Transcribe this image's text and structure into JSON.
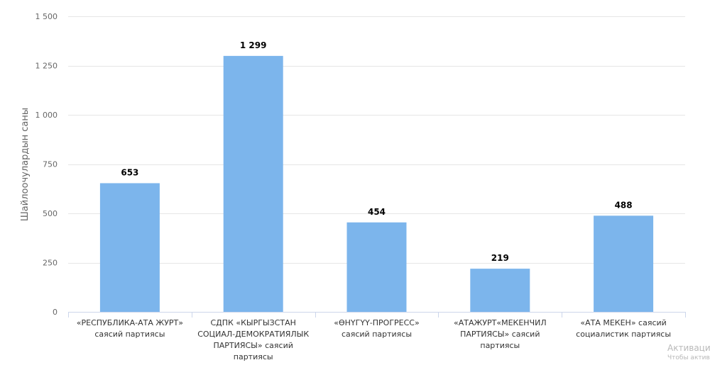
{
  "chart_data": {
    "type": "bar",
    "title": "",
    "xlabel": "",
    "ylabel": "Шайлоочулардын саны",
    "categories": [
      "«РЕСПУБЛИКА-АТА ЖУРТ» саясий партиясы",
      "СДПК «КЫРГЫЗСТАН СОЦИАЛ-ДЕМОКРАТИЯЛЫК ПАРТИЯСЫ» саясий партиясы",
      "«ӨНҮГҮҮ-ПРОГРЕСС» саясий партиясы",
      "«АТАЖУРТ«МЕКЕНЧИЛ ПАРТИЯСЫ» саясий партиясы",
      "«АТА МЕКЕН» саясий социалистик партиясы"
    ],
    "values": [
      653,
      1299,
      454,
      219,
      488
    ],
    "value_labels": [
      "653",
      "1 299",
      "454",
      "219",
      "488"
    ],
    "ylim": [
      0,
      1500
    ],
    "yticks": [
      0,
      250,
      500,
      750,
      1000,
      1250,
      1500
    ],
    "ytick_labels": [
      "0",
      "250",
      "500",
      "750",
      "1 000",
      "1 250",
      "1 500"
    ],
    "grid": true,
    "bar_color": "#7cb5ec",
    "legend": "none"
  },
  "watermark": {
    "line1": "Активаци",
    "line2": "Чтобы активи"
  }
}
